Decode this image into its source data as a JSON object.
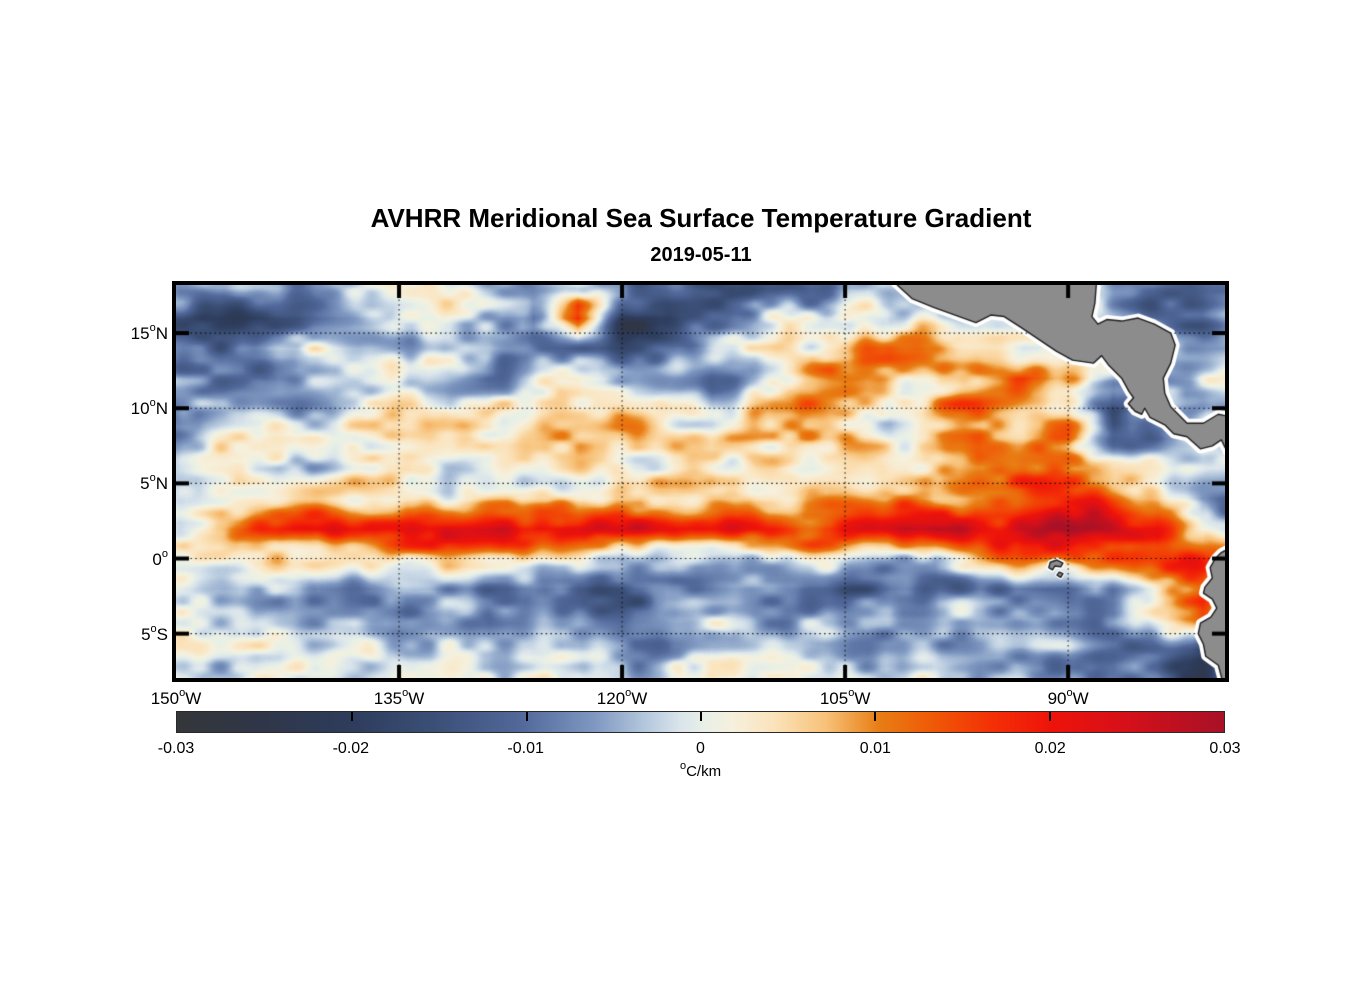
{
  "chart": {
    "title": "AVHRR Meridional Sea Surface Temperature Gradient",
    "subtitle": "2019-05-11",
    "axes": {
      "lon_range": [
        -150,
        -79.45
      ],
      "lat_range": [
        18.2,
        -7.95
      ],
      "lat_ticks": [
        {
          "value": 15,
          "label": "15°N"
        },
        {
          "value": 10,
          "label": "10°N"
        },
        {
          "value": 5,
          "label": "5°N"
        },
        {
          "value": 0,
          "label": "0°"
        },
        {
          "value": -5,
          "label": "5°S"
        }
      ],
      "lon_ticks": [
        {
          "value": -150,
          "label": "150°W"
        },
        {
          "value": -135,
          "label": "135°W"
        },
        {
          "value": -120,
          "label": "120°W"
        },
        {
          "value": -105,
          "label": "105°W"
        },
        {
          "value": -90,
          "label": "90°W"
        }
      ],
      "grid_dotted": true
    },
    "colorbar": {
      "min": -0.03,
      "max": 0.03,
      "unit_label": "°C/km",
      "ticks": [
        {
          "value": -0.03,
          "label": "-0.03"
        },
        {
          "value": -0.02,
          "label": "-0.02"
        },
        {
          "value": -0.01,
          "label": "-0.01"
        },
        {
          "value": 0,
          "label": "0"
        },
        {
          "value": 0.01,
          "label": "0.01"
        },
        {
          "value": 0.02,
          "label": "0.02"
        },
        {
          "value": 0.03,
          "label": "0.03"
        }
      ],
      "colormap": [
        [
          0.0,
          "#343639"
        ],
        [
          0.08,
          "#2f3648"
        ],
        [
          0.17,
          "#2e3d5d"
        ],
        [
          0.25,
          "#3c5078"
        ],
        [
          0.33,
          "#52699b"
        ],
        [
          0.4,
          "#8099c2"
        ],
        [
          0.45,
          "#b7cade"
        ],
        [
          0.48,
          "#d9e4ec"
        ],
        [
          0.505,
          "#e9f0e6"
        ],
        [
          0.53,
          "#f6f0dd"
        ],
        [
          0.57,
          "#fbe3bb"
        ],
        [
          0.62,
          "#f7c178"
        ],
        [
          0.67,
          "#e87e14"
        ],
        [
          0.72,
          "#ef5a07"
        ],
        [
          0.78,
          "#f42f06"
        ],
        [
          0.835,
          "#ee130a"
        ],
        [
          0.9,
          "#d81018"
        ],
        [
          1.0,
          "#a81127"
        ]
      ]
    },
    "land": {
      "fill_color": "#8c8c8c",
      "coast_color": "#1f1f1f",
      "halo_color": "#ffffff",
      "polygons": [
        {
          "name": "mexico-central-america",
          "halo": 9,
          "pts": [
            [
              -101.6,
              18.3
            ],
            [
              -100.5,
              17.3
            ],
            [
              -99.0,
              16.7
            ],
            [
              -97.6,
              16.2
            ],
            [
              -96.2,
              15.7
            ],
            [
              -95.2,
              16.2
            ],
            [
              -94.3,
              16.1
            ],
            [
              -93.2,
              15.4
            ],
            [
              -92.0,
              14.6
            ],
            [
              -90.8,
              13.8
            ],
            [
              -89.7,
              13.2
            ],
            [
              -88.3,
              13.0
            ],
            [
              -87.75,
              13.5
            ],
            [
              -87.3,
              12.9
            ],
            [
              -86.4,
              12.0
            ],
            [
              -85.9,
              11.1
            ],
            [
              -85.6,
              10.7
            ],
            [
              -85.95,
              10.3
            ],
            [
              -85.5,
              9.8
            ],
            [
              -85.05,
              9.6
            ],
            [
              -84.85,
              10.0
            ],
            [
              -84.5,
              9.4
            ],
            [
              -83.5,
              8.9
            ],
            [
              -82.9,
              8.3
            ],
            [
              -82.0,
              8.1
            ],
            [
              -81.1,
              7.3
            ],
            [
              -80.3,
              7.5
            ],
            [
              -79.7,
              7.9
            ],
            [
              -79.3,
              7.1
            ],
            [
              -78.9,
              6.9
            ],
            [
              -78.9,
              9.4
            ],
            [
              -79.9,
              9.6
            ],
            [
              -80.9,
              9.0
            ],
            [
              -82.0,
              9.0
            ],
            [
              -82.6,
              9.6
            ],
            [
              -83.1,
              10.1
            ],
            [
              -83.5,
              11.0
            ],
            [
              -83.6,
              12.0
            ],
            [
              -83.1,
              13.0
            ],
            [
              -82.8,
              14.2
            ],
            [
              -83.1,
              15.0
            ],
            [
              -84.2,
              15.6
            ],
            [
              -85.3,
              16.0
            ],
            [
              -86.4,
              15.8
            ],
            [
              -87.4,
              15.9
            ],
            [
              -88.0,
              15.6
            ],
            [
              -88.4,
              16.1
            ],
            [
              -88.2,
              17.0
            ],
            [
              -88.1,
              18.3
            ]
          ]
        },
        {
          "name": "south-america",
          "halo": 9,
          "pts": [
            [
              -78.9,
              0.8
            ],
            [
              -79.7,
              0.4
            ],
            [
              -80.1,
              0.0
            ],
            [
              -80.45,
              -0.6
            ],
            [
              -80.3,
              -1.3
            ],
            [
              -80.8,
              -1.9
            ],
            [
              -80.9,
              -2.3
            ],
            [
              -80.3,
              -2.7
            ],
            [
              -80.0,
              -3.3
            ],
            [
              -80.4,
              -3.9
            ],
            [
              -81.1,
              -4.3
            ],
            [
              -81.25,
              -5.0
            ],
            [
              -80.9,
              -5.7
            ],
            [
              -80.75,
              -6.5
            ],
            [
              -79.9,
              -7.1
            ],
            [
              -79.6,
              -8.2
            ],
            [
              -78.8,
              -8.2
            ]
          ]
        },
        {
          "name": "galapagos-islands",
          "halo": 5,
          "pts": [
            [
              -91.2,
              -0.25
            ],
            [
              -90.75,
              -0.1
            ],
            [
              -90.35,
              -0.3
            ],
            [
              -90.5,
              -0.55
            ],
            [
              -90.9,
              -0.5
            ],
            [
              -91.05,
              -0.75
            ],
            [
              -91.3,
              -0.6
            ]
          ]
        },
        {
          "name": "galapagos-islet",
          "halo": 4,
          "pts": [
            [
              -90.6,
              -0.9
            ],
            [
              -90.35,
              -1.0
            ],
            [
              -90.5,
              -1.25
            ],
            [
              -90.75,
              -1.1
            ]
          ]
        }
      ]
    }
  },
  "chart_data": {
    "type": "heatmap",
    "title": "AVHRR Meridional Sea Surface Temperature Gradient",
    "date": "2019-05-11",
    "value_units": "°C/km",
    "value_scale_note": "grid values are in 0.001 °C/km; null = land/no data",
    "color_range": [
      -0.03,
      0.03
    ],
    "lons": [
      -150,
      -147,
      -144,
      -141,
      -138,
      -135,
      -132,
      -129,
      -126,
      -123,
      -120,
      -117,
      -114,
      -111,
      -108,
      -105,
      -102,
      -99,
      -96,
      -93,
      -90,
      -87,
      -84,
      -81,
      -78
    ],
    "lats": [
      18,
      16,
      14,
      12,
      10,
      8,
      6,
      4,
      2,
      0,
      -2,
      -4,
      -6,
      -8
    ],
    "values_milli": [
      [
        -3,
        -2,
        -8,
        -12,
        -6,
        0,
        2,
        -3,
        -5,
        0,
        -4,
        -12,
        -16,
        -14,
        -16,
        -10,
        -5,
        null,
        null,
        null,
        null,
        -6,
        -8,
        -10,
        -4
      ],
      [
        -14,
        -20,
        -22,
        -16,
        -8,
        -4,
        -3,
        -8,
        -12,
        16,
        -20,
        -22,
        -12,
        -6,
        2,
        6,
        -2,
        4,
        null,
        null,
        null,
        -6,
        -10,
        -12,
        -6
      ],
      [
        -8,
        -12,
        -6,
        2,
        2,
        -2,
        -5,
        -3,
        -8,
        -14,
        -18,
        -10,
        -4,
        -2,
        3,
        8,
        12,
        10,
        5,
        -2,
        null,
        null,
        -6,
        -10,
        -8
      ],
      [
        -5,
        -8,
        -10,
        -4,
        0,
        3,
        0,
        -6,
        -4,
        2,
        -2,
        -6,
        -10,
        -3,
        4,
        10,
        6,
        3,
        10,
        16,
        12,
        null,
        -4,
        4,
        6
      ],
      [
        -12,
        -8,
        -4,
        -6,
        -2,
        2,
        4,
        1,
        -3,
        3,
        6,
        2,
        -2,
        6,
        10,
        4,
        -2,
        8,
        12,
        6,
        4,
        -18,
        null,
        -4,
        2
      ],
      [
        -4,
        0,
        4,
        2,
        -2,
        0,
        3,
        6,
        4,
        8,
        10,
        6,
        3,
        8,
        12,
        8,
        4,
        6,
        10,
        6,
        12,
        -10,
        -8,
        null,
        -3
      ],
      [
        1,
        3,
        0,
        -2,
        2,
        4,
        2,
        0,
        3,
        6,
        4,
        2,
        5,
        3,
        0,
        4,
        2,
        6,
        12,
        14,
        8,
        4,
        6,
        3,
        -5
      ],
      [
        2,
        4,
        3,
        1,
        3,
        5,
        4,
        6,
        5,
        3,
        6,
        8,
        6,
        4,
        6,
        10,
        8,
        6,
        12,
        16,
        18,
        14,
        8,
        -8,
        -12
      ],
      [
        4,
        8,
        15,
        22,
        20,
        18,
        24,
        26,
        24,
        22,
        26,
        24,
        20,
        18,
        16,
        20,
        24,
        26,
        22,
        26,
        28,
        22,
        20,
        -2,
        -6
      ],
      [
        2,
        3,
        5,
        3,
        2,
        4,
        6,
        3,
        2,
        4,
        -2,
        -4,
        -2,
        2,
        4,
        2,
        -4,
        -6,
        6,
        14,
        10,
        12,
        14,
        18,
        12
      ],
      [
        -2,
        -4,
        -6,
        -8,
        -6,
        -8,
        -10,
        -12,
        -10,
        -14,
        -16,
        -12,
        -14,
        -10,
        -12,
        -14,
        -10,
        -12,
        -8,
        -10,
        -12,
        -6,
        6,
        16,
        null
      ],
      [
        -1,
        -3,
        -2,
        -4,
        -3,
        -5,
        -4,
        -8,
        -6,
        -4,
        -8,
        -6,
        -4,
        -6,
        -4,
        -6,
        -4,
        -6,
        -4,
        -2,
        -6,
        -8,
        2,
        10,
        null
      ],
      [
        0,
        1,
        -1,
        -2,
        0,
        -2,
        -3,
        -1,
        -4,
        -2,
        -3,
        -5,
        -2,
        -4,
        -2,
        -4,
        -6,
        -3,
        -5,
        -8,
        -4,
        -12,
        -14,
        -18,
        null
      ],
      [
        1,
        0,
        2,
        0,
        -1,
        1,
        -2,
        0,
        -2,
        1,
        -1,
        -3,
        0,
        -2,
        0,
        -2,
        -4,
        -2,
        -6,
        -4,
        -8,
        -14,
        -10,
        -20,
        null
      ]
    ]
  }
}
